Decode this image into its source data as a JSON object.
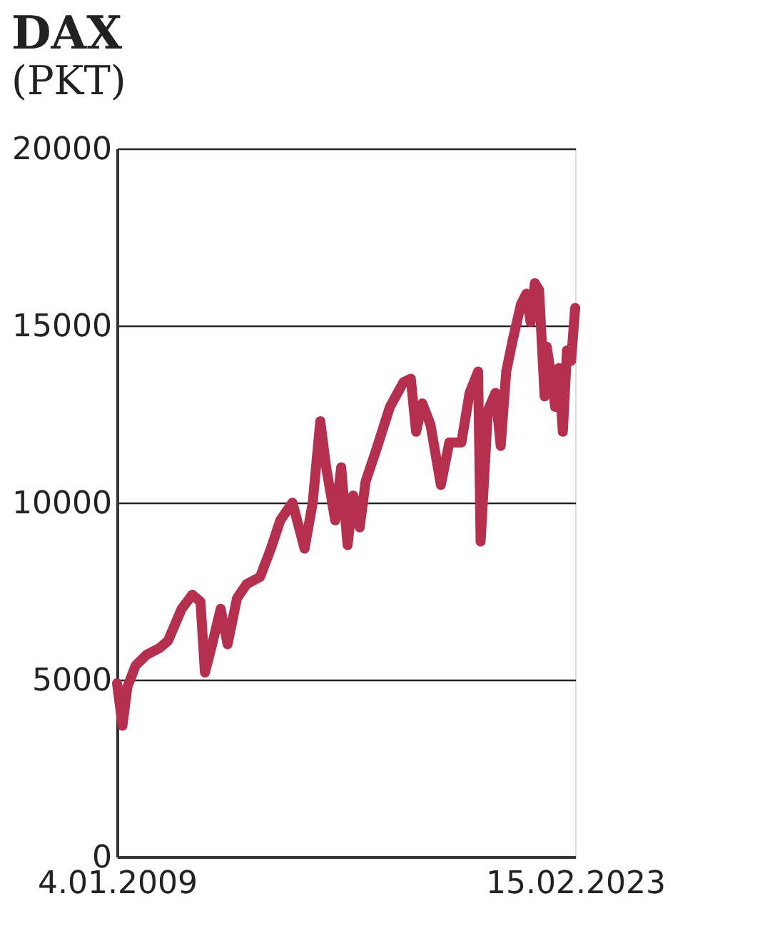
{
  "chart_data": {
    "type": "line",
    "title": "DAX",
    "subtitle": "(PKT)",
    "x": [
      "2009-01-04",
      "2009-03-06",
      "2009-05-01",
      "2009-08-01",
      "2009-12-01",
      "2010-05-01",
      "2010-08-01",
      "2011-01-01",
      "2011-05-01",
      "2011-08-01",
      "2011-09-20",
      "2011-12-01",
      "2012-03-15",
      "2012-06-01",
      "2012-09-15",
      "2013-01-01",
      "2013-06-01",
      "2013-10-01",
      "2014-01-15",
      "2014-06-01",
      "2014-10-15",
      "2015-01-15",
      "2015-04-10",
      "2015-06-15",
      "2015-09-25",
      "2015-12-01",
      "2016-02-11",
      "2016-04-15",
      "2016-06-27",
      "2016-09-01",
      "2016-12-31",
      "2017-06-01",
      "2017-11-01",
      "2018-01-23",
      "2018-03-23",
      "2018-06-01",
      "2018-09-01",
      "2018-12-27",
      "2019-04-01",
      "2019-08-15",
      "2019-11-15",
      "2020-02-19",
      "2020-03-18",
      "2020-06-08",
      "2020-09-01",
      "2020-10-30",
      "2020-12-31",
      "2021-03-15",
      "2021-06-15",
      "2021-08-15",
      "2021-10-01",
      "2021-11-18",
      "2022-01-05",
      "2022-03-08",
      "2022-04-01",
      "2022-06-01",
      "2022-07-05",
      "2022-08-15",
      "2022-09-29",
      "2022-11-15",
      "2022-12-31",
      "2023-02-15"
    ],
    "series": [
      {
        "color": "#b5304f",
        "values": [
          4900,
          3700,
          4800,
          5400,
          5700,
          5900,
          6100,
          7000,
          7400,
          7200,
          5200,
          5900,
          7000,
          6000,
          7300,
          7700,
          7900,
          8700,
          9500,
          10000,
          8700,
          10000,
          12300,
          11000,
          9500,
          11000,
          8800,
          10200,
          9300,
          10600,
          11500,
          12700,
          13400,
          13500,
          12000,
          12800,
          12200,
          10500,
          11700,
          11700,
          13100,
          13700,
          8900,
          12600,
          13100,
          11600,
          13700,
          14600,
          15600,
          15900,
          15100,
          16200,
          16000,
          13000,
          14400,
          13400,
          12700,
          13800,
          12000,
          14300,
          14000,
          15500
        ]
      }
    ],
    "xlim": [
      "2009-01-04",
      "2023-02-15"
    ],
    "xticks": [
      {
        "value": "2009-01-04",
        "label": "4.01.2009"
      },
      {
        "value": "2023-02-15",
        "label": "15.02.2023"
      }
    ],
    "ylim": [
      0,
      20000
    ],
    "yticks": [
      0,
      5000,
      10000,
      15000,
      20000
    ],
    "grid": "y",
    "marker": "none",
    "line_style": "solid"
  }
}
